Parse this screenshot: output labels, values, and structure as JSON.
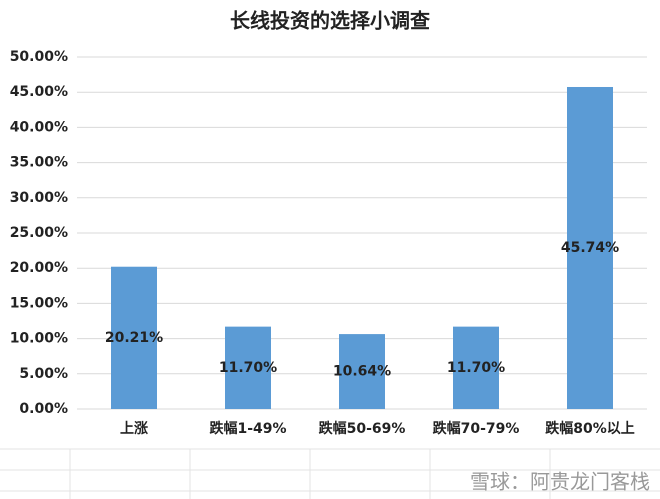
{
  "chart_data": {
    "type": "bar",
    "title": "长线投资的选择小调查",
    "categories": [
      "上涨",
      "跌幅1-49%",
      "跌幅50-69%",
      "跌幅70-79%",
      "跌幅80%以上"
    ],
    "values": [
      20.21,
      11.7,
      10.64,
      11.7,
      45.74
    ],
    "value_labels": [
      "20.21%",
      "11.70%",
      "10.64%",
      "11.70%",
      "45.74%"
    ],
    "color": "#5b9bd5",
    "ylim": [
      0,
      50
    ],
    "yticks": [
      {
        "value": 0,
        "label": "0.00%"
      },
      {
        "value": 5,
        "label": "5.00%"
      },
      {
        "value": 10,
        "label": "10.00%"
      },
      {
        "value": 15,
        "label": "15.00%"
      },
      {
        "value": 20,
        "label": "20.00%"
      },
      {
        "value": 25,
        "label": "25.00%"
      },
      {
        "value": 30,
        "label": "30.00%"
      },
      {
        "value": 35,
        "label": "35.00%"
      },
      {
        "value": 40,
        "label": "40.00%"
      },
      {
        "value": 45,
        "label": "45.00%"
      },
      {
        "value": 50,
        "label": "50.00%"
      }
    ],
    "grid": true,
    "watermark": "雪球：阿贵龙门客栈"
  }
}
